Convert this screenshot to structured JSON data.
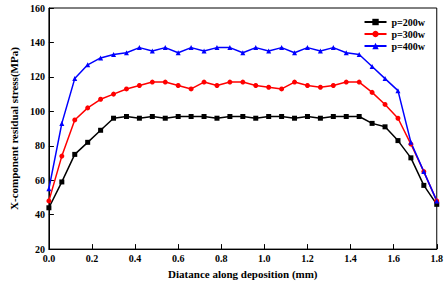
{
  "chart_data": {
    "type": "line",
    "x_label": "Diatance along deposition (mm)",
    "y_label": "X-component residual stress(MPa)",
    "x": [
      0,
      0.06,
      0.12,
      0.18,
      0.24,
      0.3,
      0.36,
      0.42,
      0.48,
      0.54,
      0.6,
      0.66,
      0.72,
      0.78,
      0.84,
      0.9,
      0.96,
      1.02,
      1.08,
      1.14,
      1.2,
      1.26,
      1.32,
      1.38,
      1.44,
      1.5,
      1.56,
      1.62,
      1.68,
      1.74,
      1.8
    ],
    "series": [
      {
        "name": "p=200w",
        "color": "#000000",
        "marker": "square",
        "line_style": "solid",
        "values": [
          44,
          59,
          75,
          82,
          89,
          96,
          97,
          96,
          97,
          96,
          97,
          97,
          97,
          96,
          97,
          97,
          96,
          97,
          97,
          96,
          97,
          96,
          97,
          97,
          97,
          93,
          91,
          83,
          73,
          57,
          46
        ]
      },
      {
        "name": "p=300w",
        "color": "#ff0000",
        "marker": "circle",
        "line_style": "solid",
        "values": [
          48,
          74,
          95,
          102,
          107,
          110,
          113,
          115,
          117,
          117,
          115,
          113,
          117,
          115,
          117,
          117,
          115,
          114,
          113,
          117,
          115,
          114,
          115,
          117,
          117,
          111,
          104,
          96,
          81,
          65,
          48
        ]
      },
      {
        "name": "p=400w",
        "color": "#0000ff",
        "marker": "triangle",
        "line_style": "solid",
        "values": [
          55,
          93,
          119,
          127,
          131,
          133,
          134,
          137,
          135,
          137,
          134,
          137,
          135,
          137,
          137,
          134,
          137,
          135,
          137,
          134,
          137,
          135,
          137,
          134,
          133,
          126,
          119,
          112,
          82,
          65,
          48
        ]
      }
    ],
    "xlim": [
      0,
      1.8
    ],
    "xticks": [
      {
        "value": 0,
        "label": "0.0"
      },
      0.2,
      0.4,
      0.6,
      0.8,
      {
        "value": 1,
        "label": "1.0"
      },
      1.2,
      1.4,
      1.6,
      1.8
    ],
    "ylim": [
      20,
      160
    ],
    "yticks": [
      20,
      40,
      60,
      80,
      100,
      120,
      140,
      160
    ],
    "grid": false,
    "legend": "top-right"
  }
}
